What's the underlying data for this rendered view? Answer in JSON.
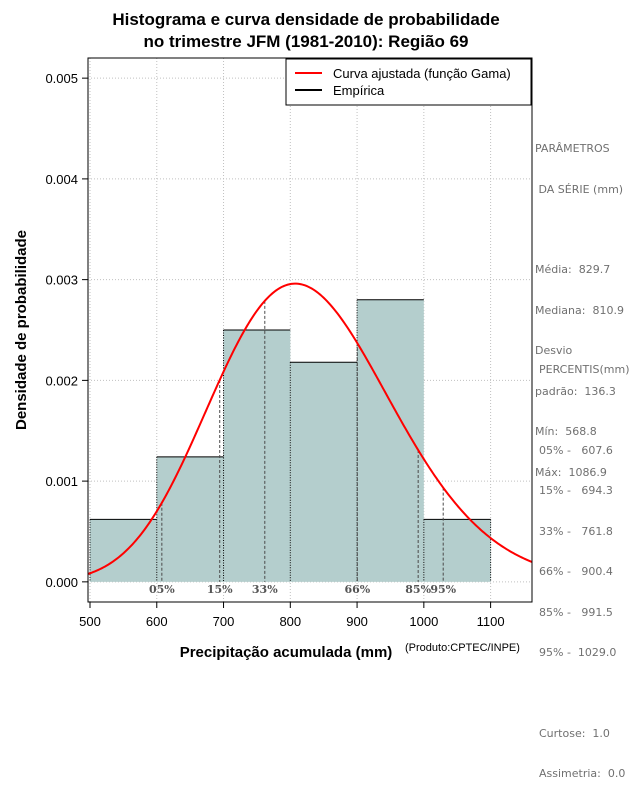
{
  "chart_data": {
    "type": "histogram",
    "title_lines": [
      "Histograma e curva densidade de probabilidade",
      "no trimestre JFM (1981-2010): Região 69"
    ],
    "xlabel": "Precipitação acumulada (mm)",
    "ylabel": "Densidade de probabilidade",
    "credit": "(Produto:CPTEC/INPE)",
    "xlim": [
      497,
      1162
    ],
    "ylim": [
      -0.0002,
      0.0052
    ],
    "x_ticks": [
      500,
      600,
      700,
      800,
      900,
      1000,
      1100
    ],
    "y_ticks": [
      0.0,
      0.001,
      0.002,
      0.003,
      0.004,
      0.005
    ],
    "y_tick_labels": [
      "0.000",
      "0.001",
      "0.002",
      "0.003",
      "0.004",
      "0.005"
    ],
    "grid": true,
    "bars": [
      {
        "x0": 500,
        "x1": 600,
        "density": 0.00062
      },
      {
        "x0": 600,
        "x1": 700,
        "density": 0.00124
      },
      {
        "x0": 700,
        "x1": 800,
        "density": 0.0025
      },
      {
        "x0": 800,
        "x1": 900,
        "density": 0.00218
      },
      {
        "x0": 900,
        "x1": 1000,
        "density": 0.0028
      },
      {
        "x0": 1000,
        "x1": 1100,
        "density": 0.00062
      }
    ],
    "fitted_curve": {
      "name": "Curva ajustada (função Gama)",
      "distribution": "gamma",
      "mean": 829.7,
      "sd": 136.3
    },
    "percentile_lines": [
      {
        "label": "05%",
        "value": 607.6
      },
      {
        "label": "15%",
        "value": 694.3
      },
      {
        "label": "33%",
        "value": 761.8
      },
      {
        "label": "66%",
        "value": 900.4
      },
      {
        "label": "85%",
        "value": 991.5
      },
      {
        "label": "95%",
        "value": 1029.0
      }
    ],
    "legend": {
      "position": "top-right",
      "entries": [
        {
          "label": "Curva ajustada (função Gama)",
          "color": "#ff0000"
        },
        {
          "label": "Empírica",
          "color": "#000000"
        }
      ]
    },
    "colors": {
      "bar_fill": "#b4cecd",
      "curve": "#ff0000",
      "grid": "#c0c0c0",
      "percentile": "#4a4a4a",
      "percentile_label": "#555555"
    }
  },
  "side_panel": {
    "params_title": [
      "PARÂMETROS",
      " DA SÉRIE (mm)"
    ],
    "params": [
      "Média:  829.7",
      "Mediana:  810.9",
      "Desvio",
      "padrão:  136.3",
      "Mín:  568.8",
      "Máx:  1086.9"
    ],
    "percentis_title": "PERCENTIS(mm)",
    "percentis": [
      "05% -   607.6",
      "15% -   694.3",
      "33% -   761.8",
      "66% -   900.4",
      "85% -   991.5",
      "95% -  1029.0"
    ],
    "stats": [
      "Curtose:  1.0",
      "Assimetria:  0.0"
    ]
  }
}
